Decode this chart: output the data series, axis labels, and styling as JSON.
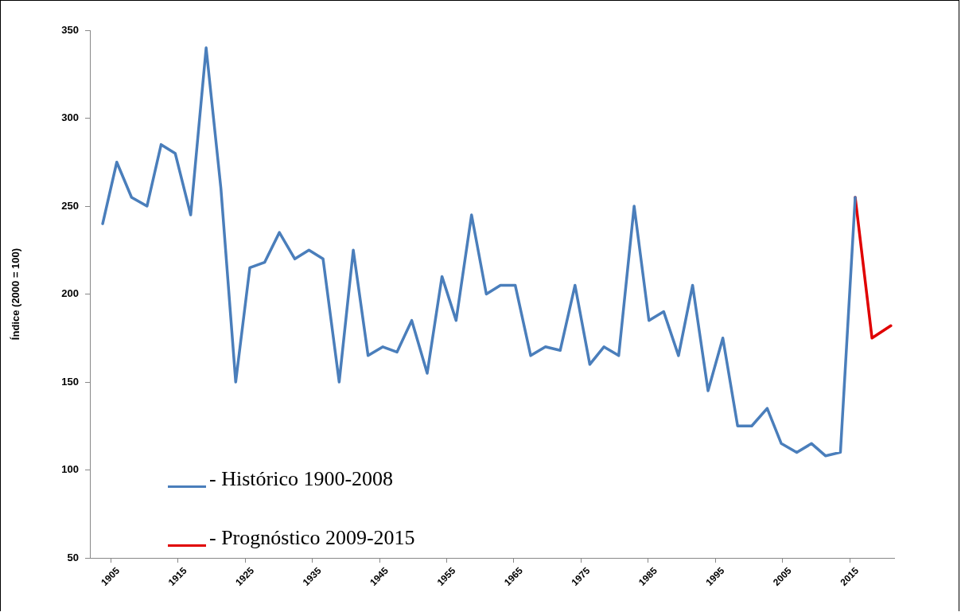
{
  "chart_data": {
    "type": "line",
    "ylabel": "Índice (2000 = 100)",
    "xlim": [
      1901.9,
      2021.6
    ],
    "xticks": [
      1905,
      1915,
      1925,
      1935,
      1945,
      1955,
      1965,
      1975,
      1985,
      1995,
      2005,
      2015
    ],
    "ylim": [
      50,
      350
    ],
    "yticks": [
      50,
      100,
      150,
      200,
      250,
      300,
      350
    ],
    "grid": false,
    "marker": "none",
    "line_style": "solid",
    "legend": "bottom left",
    "series": [
      {
        "name": "- Histórico 1900-2008",
        "color": "#4a7ebb",
        "x": [
          1903.8,
          1905.9,
          1908.1,
          1910.4,
          1912.5,
          1914.6,
          1916.9,
          1919.2,
          1921.4,
          1923.6,
          1925.7,
          1927.9,
          1930.1,
          1932.4,
          1934.5,
          1936.6,
          1939.0,
          1941.1,
          1943.3,
          1945.5,
          1947.6,
          1949.8,
          1952.1,
          1954.3,
          1956.4,
          1958.7,
          1960.9,
          1963.0,
          1965.2,
          1967.5,
          1969.7,
          1971.9,
          1974.1,
          1976.3,
          1978.4,
          1980.6,
          1982.9,
          1985.1,
          1987.3,
          1989.5,
          1991.6,
          1993.9,
          1996.1,
          1998.3,
          2000.4,
          2002.7,
          2004.8,
          2007.1,
          2009.3,
          2011.4,
          2013.6,
          2015.8
        ],
        "values": [
          240,
          275,
          255,
          250,
          285,
          280,
          245,
          340,
          260,
          150,
          215,
          218,
          235,
          220,
          225,
          220,
          150,
          225,
          165,
          170,
          167,
          185,
          155,
          210,
          185,
          245,
          200,
          205,
          205,
          165,
          170,
          168,
          205,
          160,
          170,
          165,
          250,
          185,
          190,
          165,
          205,
          145,
          175,
          125,
          125,
          135,
          115,
          110,
          115,
          108,
          110,
          255
        ]
      },
      {
        "name": "- Prognóstico 2009-2015",
        "color": "#e00000",
        "x": [
          2015.8,
          2018.3,
          2021.1
        ],
        "values": [
          255,
          175,
          182
        ]
      }
    ]
  }
}
